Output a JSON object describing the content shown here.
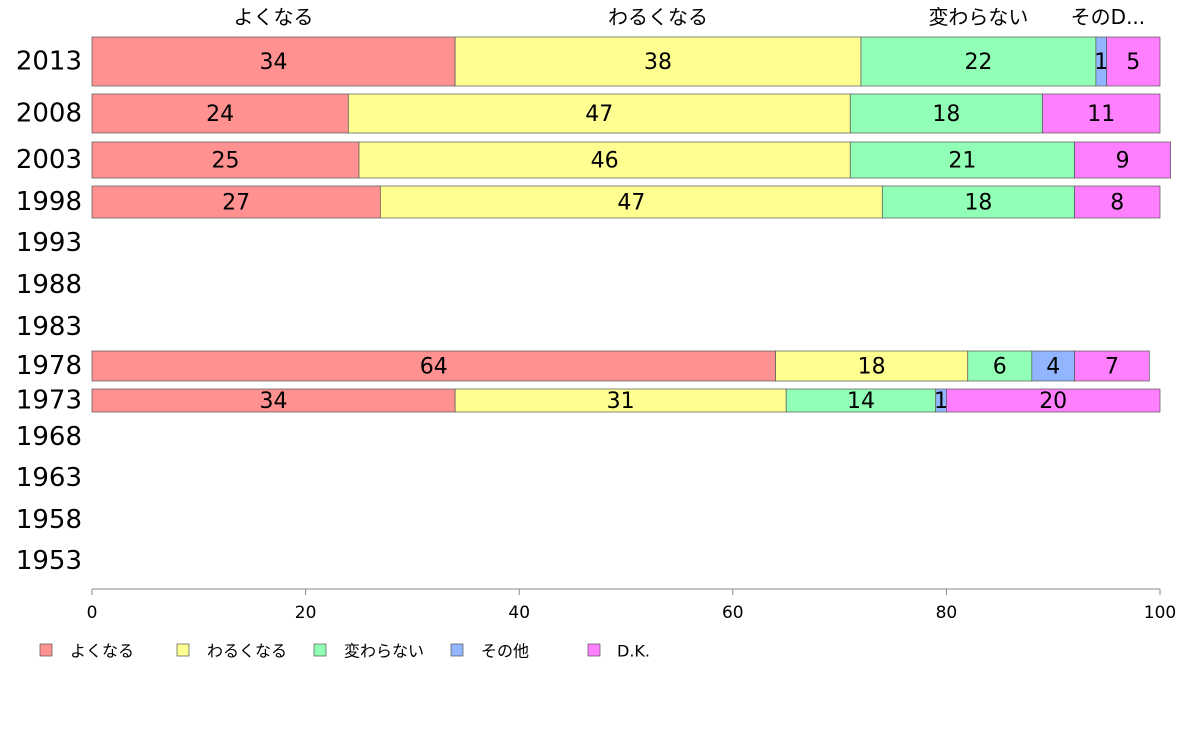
{
  "chart_data": {
    "type": "bar",
    "orientation": "horizontal",
    "stacked": true,
    "categories": [
      "2013",
      "2008",
      "2003",
      "1998",
      "1993",
      "1988",
      "1983",
      "1978",
      "1973",
      "1968",
      "1963",
      "1958",
      "1953"
    ],
    "series": [
      {
        "name": "よくなる",
        "color": "#ff9191",
        "values": [
          34,
          24,
          25,
          27,
          null,
          null,
          null,
          64,
          34,
          null,
          null,
          null,
          null
        ]
      },
      {
        "name": "わるくなる",
        "color": "#ffff91",
        "values": [
          38,
          47,
          46,
          47,
          null,
          null,
          null,
          18,
          31,
          null,
          null,
          null,
          null
        ]
      },
      {
        "name": "変わらない",
        "color": "#91ffb6",
        "values": [
          22,
          18,
          21,
          18,
          null,
          null,
          null,
          6,
          14,
          null,
          null,
          null,
          null
        ]
      },
      {
        "name": "その他",
        "color": "#91b6ff",
        "values": [
          1,
          0,
          0,
          0,
          null,
          null,
          null,
          4,
          1,
          null,
          null,
          null,
          null
        ]
      },
      {
        "name": "D.K.",
        "color": "#ff7fff",
        "values": [
          5,
          11,
          9,
          8,
          null,
          null,
          null,
          7,
          20,
          null,
          null,
          null,
          null
        ]
      }
    ],
    "column_headers": [
      "よくなる",
      "わるくなる",
      "変わらない",
      "そのD..."
    ],
    "xlim": [
      0,
      100
    ],
    "xticks": [
      0,
      20,
      40,
      60,
      80,
      100
    ],
    "grid": false,
    "legend_position": "bottom"
  }
}
